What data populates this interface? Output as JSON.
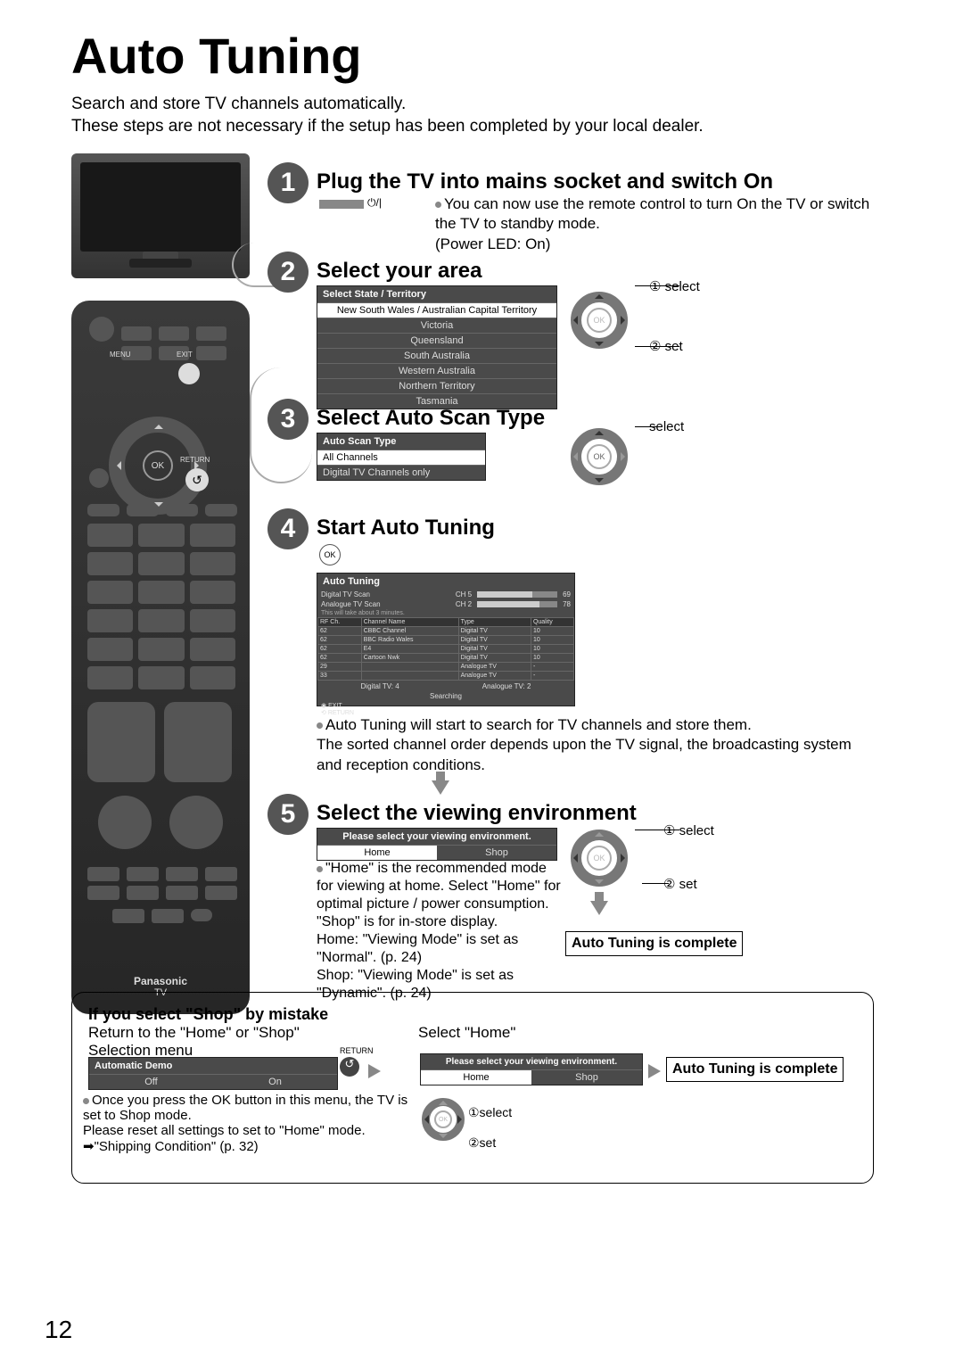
{
  "page_number": "12",
  "title": "Auto Tuning",
  "intro_line1": "Search and store TV channels automatically.",
  "intro_line2": "These steps are not necessary if the setup has been completed by your local dealer.",
  "remote": {
    "brand": "Panasonic",
    "sub": "TV",
    "ok": "OK",
    "menu": "MENU",
    "exit": "EXIT",
    "return": "RETURN",
    "return_icon": "↺"
  },
  "step1": {
    "n": "1",
    "title": "Plug the TV into mains socket and switch On",
    "power_icon": "⏻/|",
    "bullet": "You can now use the remote control to turn On the TV or switch the TV to standby mode.",
    "led": "(Power LED: On)"
  },
  "step2": {
    "n": "2",
    "title": "Select your area",
    "menu_header": "Select State / Territory",
    "options": [
      "New South Wales / Australian Capital Territory",
      "Victoria",
      "Queensland",
      "South Australia",
      "Western Australia",
      "Northern Territory",
      "Tasmania"
    ],
    "selected_index": 0,
    "nav": {
      "l1": "① select",
      "l2": "② set",
      "ok": "OK"
    }
  },
  "step3": {
    "n": "3",
    "title": "Select Auto Scan Type",
    "menu_header": "Auto Scan Type",
    "options": [
      "All Channels",
      "Digital TV Channels only"
    ],
    "selected_index": 0,
    "nav": {
      "l1": "select",
      "ok": "OK"
    }
  },
  "step4": {
    "n": "4",
    "title": "Start Auto Tuning",
    "ok": "OK",
    "scan": {
      "header": "Auto Tuning",
      "digital": "Digital TV Scan",
      "digital_ch": "CH 5",
      "digital_pct": "69",
      "analogue": "Analogue TV Scan",
      "analogue_ch": "CH 2",
      "analogue_pct": "78",
      "eta": "This will take about 3 minutes.",
      "cols": [
        "RF Ch.",
        "Channel Name",
        "Type",
        "Quality"
      ],
      "rows": [
        [
          "62",
          "CBBC Channel",
          "Digital TV",
          "10"
        ],
        [
          "62",
          "BBC Radio Wales",
          "Digital TV",
          "10"
        ],
        [
          "62",
          "E4",
          "Digital TV",
          "10"
        ],
        [
          "62",
          "Cartoon Nwk",
          "Digital TV",
          "10"
        ],
        [
          "29",
          "",
          "Analogue TV",
          "-"
        ],
        [
          "33",
          "",
          "Analogue TV",
          "-"
        ]
      ],
      "footer_l": "Digital TV: 4",
      "footer_r": "Analogue TV: 2",
      "searching": "Searching",
      "exit": "EXIT",
      "return": "RETURN"
    },
    "bullet": "Auto Tuning will start to search for TV channels and store them.",
    "body": "The sorted channel order depends upon the TV signal, the broadcasting system and reception conditions."
  },
  "step5": {
    "n": "5",
    "title": "Select the viewing environment",
    "menu_header": "Please select your viewing environment.",
    "options": [
      "Home",
      "Shop"
    ],
    "selected_index": 0,
    "bullet": "\"Home\" is the recommended mode for viewing at home. Select \"Home\" for optimal picture / power consumption. \"Shop\" is for in-store display.",
    "home_mode": "Home: \"Viewing Mode\" is set as \"Normal\". (p. 24)",
    "shop_mode": "Shop: \"Viewing Mode\" is set as \"Dynamic\". (p. 24)",
    "nav": {
      "l1": "① select",
      "l2": "② set",
      "ok": "OK"
    },
    "complete": "Auto Tuning is complete"
  },
  "shop_box": {
    "h": "If you select \"Shop\" by mistake",
    "return_menu": "Return to the \"Home\" or \"Shop\" Selection menu",
    "select_home": "Select \"Home\"",
    "demo_header": "Automatic Demo",
    "demo_options": [
      "Off",
      "On"
    ],
    "return_lbl": "RETURN",
    "bullet": "Once you press the OK button in this menu, the TV is set to Shop mode.",
    "reset": "Please reset all settings to set to \"Home\" mode.",
    "ship": "\"Shipping Condition\" (p. 32)",
    "env_header": "Please select your viewing environment.",
    "env_options": [
      "Home",
      "Shop"
    ],
    "nav": {
      "l1": "①select",
      "l2": "②set",
      "ok": "OK"
    },
    "complete": "Auto Tuning is complete"
  }
}
